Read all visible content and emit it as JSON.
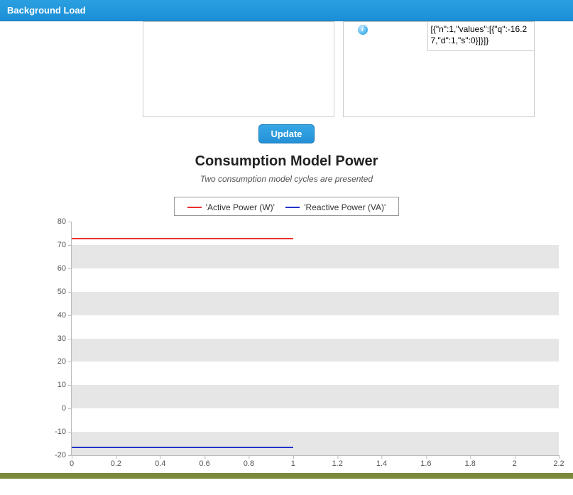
{
  "header": {
    "title": "Background Load"
  },
  "panels": {
    "right_json_text": "[{\"n\":1,\"values\":[{\"q\":-16.27,\"d\":1,\"s\":0}]}]}",
    "info_icon_glyph": "i"
  },
  "update_button": {
    "label": "Update"
  },
  "chart": {
    "title": "Consumption Model Power",
    "subtitle": "Two consumption model cycles are presented",
    "legend": {
      "active": {
        "label": "'Active Power (W)'",
        "color": "#e83030"
      },
      "reactive": {
        "label": "'Reactive Power (VA)'",
        "color": "#2233cc"
      }
    },
    "y": {
      "min": -20,
      "max": 80,
      "ticks": [
        -20,
        -10,
        0,
        10,
        20,
        30,
        40,
        50,
        60,
        70,
        80
      ]
    },
    "x": {
      "min": 0,
      "max": 2.2,
      "ticks": [
        0,
        0.2,
        0.4,
        0.6,
        0.8,
        1,
        1.2,
        1.4,
        1.6,
        1.8,
        2,
        2.2
      ]
    },
    "bands": [
      {
        "from": 60,
        "to": 70
      },
      {
        "from": 40,
        "to": 50
      },
      {
        "from": 20,
        "to": 30
      },
      {
        "from": 0,
        "to": 10
      },
      {
        "from": -20,
        "to": -10
      }
    ],
    "band_color": "#e6e6e6",
    "series": {
      "active": {
        "x_from": 0,
        "x_to": 1,
        "y": 73,
        "color": "#e83030"
      },
      "reactive": {
        "x_from": 0,
        "x_to": 1,
        "y": -16.27,
        "color": "#2233cc"
      }
    }
  }
}
